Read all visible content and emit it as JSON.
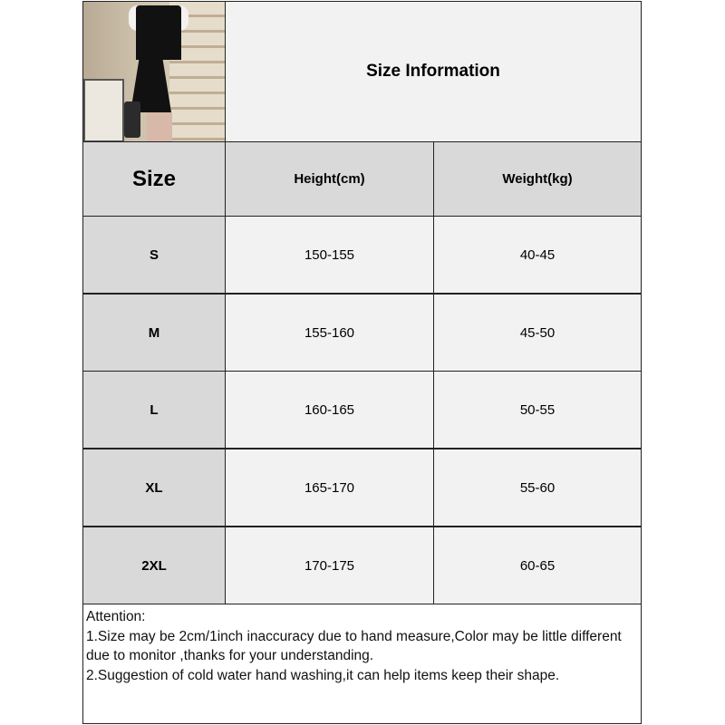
{
  "header": {
    "title": "Size Information",
    "image_alt": "product photo of a black dress with white short sleeves"
  },
  "table": {
    "columns": [
      "Size",
      "Height(cm)",
      "Weight(kg)"
    ],
    "rows": [
      [
        "S",
        "150-155",
        "40-45"
      ],
      [
        "M",
        "155-160",
        "45-50"
      ],
      [
        "L",
        "160-165",
        "50-55"
      ],
      [
        "XL",
        "165-170",
        "55-60"
      ],
      [
        "2XL",
        "170-175",
        "60-65"
      ]
    ]
  },
  "notes": {
    "heading": "Attention:",
    "lines": [
      "1.Size may be 2cm/1inch inaccuracy due to hand measure,Color may be little different due to monitor ,thanks for your understanding.",
      "2.Suggestion of cold water hand washing,it can help items keep their shape."
    ]
  },
  "colors": {
    "header_fill": "#d9d9d9",
    "cell_fill": "#f2f2f2",
    "border": "#222222"
  }
}
